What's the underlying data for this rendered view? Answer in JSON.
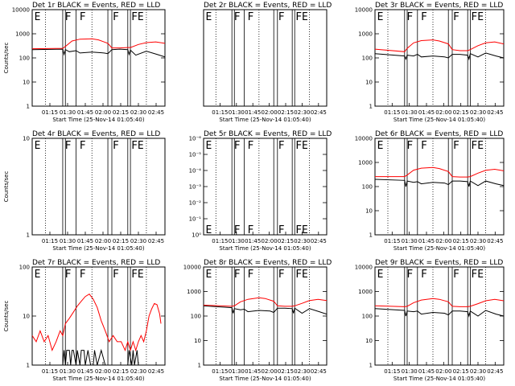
{
  "chart_data": [
    {
      "type": "line",
      "title": "Det 1r BLACK = Events, RED = LLD",
      "xlabel": "Start Time (25-Nov-14 01:05:40)",
      "ylabel": "Counts/sec",
      "xlim": [
        0,
        100
      ],
      "ylim": [
        1,
        10000
      ],
      "yscale": "log",
      "yticks": [
        1,
        10,
        100,
        1000,
        10000
      ],
      "yticklabels": [
        "1",
        "10",
        "100",
        "1000",
        "10000"
      ],
      "xticklabels": [
        "01:15",
        "01:30",
        "01:45",
        "02:00",
        "02:15",
        "02:30",
        "02:45"
      ],
      "dotted_lines": [
        10,
        45,
        86
      ],
      "solid_lines": [
        23,
        25,
        33,
        57,
        60,
        72,
        74
      ],
      "markers": [
        {
          "x": 1,
          "label": "E"
        },
        {
          "x": 24,
          "label": "F"
        },
        {
          "x": 35,
          "label": "F"
        },
        {
          "x": 60,
          "label": "F"
        },
        {
          "x": 74,
          "label": "FE"
        }
      ],
      "series": [
        {
          "name": "BLACK = Events",
          "color": "#000000",
          "x": [
            0,
            23,
            24,
            25,
            28,
            33,
            36,
            45,
            54,
            57,
            60,
            66,
            72,
            73,
            74,
            78,
            86,
            94,
            100
          ],
          "values": [
            220,
            230,
            140,
            220,
            180,
            200,
            160,
            175,
            160,
            150,
            220,
            230,
            220,
            140,
            210,
            130,
            190,
            140,
            110
          ]
        },
        {
          "name": "RED = LLD",
          "color": "#ff0000",
          "x": [
            0,
            23,
            25,
            30,
            36,
            45,
            50,
            57,
            60,
            66,
            72,
            74,
            80,
            86,
            93,
            100
          ],
          "values": [
            240,
            250,
            300,
            500,
            600,
            620,
            560,
            400,
            260,
            260,
            270,
            270,
            360,
            430,
            460,
            400
          ]
        }
      ]
    },
    {
      "type": "line",
      "title": "Det 2r BLACK = Events, RED = LLD",
      "xlabel": "Start Time (25-Nov-14 01:05:40)",
      "ylabel": "",
      "xlim": [
        0,
        100
      ],
      "ylim": [
        1,
        10000
      ],
      "yscale": "log",
      "yticks": [],
      "yticklabels": [],
      "xticklabels": [
        "01:15",
        "01:30",
        "01:45",
        "02:00",
        "02:15",
        "02:30",
        "02:45"
      ],
      "dotted_lines": [
        10,
        45,
        86
      ],
      "solid_lines": [
        23,
        25,
        33,
        57,
        60,
        72,
        74
      ],
      "markers": [
        {
          "x": 1,
          "label": "E"
        },
        {
          "x": 24,
          "label": "F"
        },
        {
          "x": 35,
          "label": "F"
        },
        {
          "x": 60,
          "label": "F"
        },
        {
          "x": 74,
          "label": "FE"
        }
      ],
      "series": []
    },
    {
      "type": "line",
      "title": "Det 3r BLACK = Events, RED = LLD",
      "xlabel": "Start Time (25-Nov-14 01:05:40)",
      "ylabel": "",
      "xlim": [
        0,
        100
      ],
      "ylim": [
        1,
        10000
      ],
      "yscale": "log",
      "yticks": [
        1,
        10,
        100,
        1000,
        10000
      ],
      "yticklabels": [
        "1",
        "10",
        "100",
        "1000",
        "10000"
      ],
      "xticklabels": [
        "01:15",
        "01:30",
        "01:45",
        "02:00",
        "02:15",
        "02:30",
        "02:45"
      ],
      "dotted_lines": [
        10,
        45,
        86
      ],
      "solid_lines": [
        23,
        25,
        33,
        57,
        60,
        72,
        74
      ],
      "markers": [
        {
          "x": 1,
          "label": "E"
        },
        {
          "x": 24,
          "label": "F"
        },
        {
          "x": 35,
          "label": "F"
        },
        {
          "x": 60,
          "label": "F"
        },
        {
          "x": 74,
          "label": "FE"
        }
      ],
      "series": [
        {
          "name": "BLACK = Events",
          "color": "#000000",
          "x": [
            0,
            23,
            24,
            25,
            30,
            33,
            36,
            45,
            54,
            57,
            60,
            66,
            72,
            73,
            74,
            80,
            86,
            94,
            100
          ],
          "values": [
            150,
            120,
            90,
            130,
            120,
            140,
            110,
            120,
            110,
            100,
            140,
            140,
            130,
            90,
            150,
            110,
            160,
            120,
            100
          ]
        },
        {
          "name": "RED = LLD",
          "color": "#ff0000",
          "x": [
            0,
            23,
            25,
            30,
            36,
            45,
            50,
            57,
            60,
            66,
            72,
            74,
            80,
            86,
            93,
            100
          ],
          "values": [
            230,
            180,
            250,
            420,
            520,
            560,
            500,
            380,
            220,
            200,
            200,
            220,
            320,
            420,
            460,
            380
          ]
        }
      ]
    },
    {
      "type": "line",
      "title": "Det 4r BLACK = Events, RED = LLD",
      "xlabel": "Start Time (25-Nov-14 01:05:40)",
      "ylabel": "Counts/sec",
      "xlim": [
        0,
        100
      ],
      "ylim": [
        1,
        10
      ],
      "yscale": "log",
      "yticks": [
        1,
        10
      ],
      "yticklabels": [
        "1",
        "10"
      ],
      "xticklabels": [
        "01:15",
        "01:30",
        "01:45",
        "02:00",
        "02:15",
        "02:30",
        "02:45"
      ],
      "dotted_lines": [
        10,
        45,
        86
      ],
      "solid_lines": [
        23,
        25,
        33,
        57,
        60,
        72,
        74
      ],
      "markers": [
        {
          "x": 1,
          "label": "E"
        },
        {
          "x": 24,
          "label": "F"
        },
        {
          "x": 35,
          "label": "F"
        },
        {
          "x": 60,
          "label": "F"
        },
        {
          "x": 74,
          "label": "FE"
        }
      ],
      "series": []
    },
    {
      "type": "line",
      "title": "Det 5r BLACK = Events, RED = LLD",
      "xlabel": "Start Time (25-Nov-14 01:05:40)",
      "ylabel": "",
      "xlim": [
        0,
        100
      ],
      "ylim": [
        1,
        1e-06
      ],
      "yscale": "log",
      "yticks": [
        1e-06,
        1e-05,
        0.0001,
        0.001,
        0.01,
        0.1,
        1
      ],
      "yticklabels": [
        "10⁻⁶",
        "10⁻⁵",
        "10⁻⁴",
        "10⁻³",
        "10⁻²",
        "10⁻¹",
        "10⁰"
      ],
      "xticklabels": [
        "01:15",
        "01:30",
        "01:45",
        "02:00",
        "02:15",
        "02:30",
        "02:45"
      ],
      "dotted_lines": [
        10,
        45,
        86
      ],
      "solid_lines": [
        23,
        25,
        33,
        57,
        60,
        72,
        74
      ],
      "markers": [
        {
          "x": 1,
          "label": "E"
        },
        {
          "x": 24,
          "label": "F"
        },
        {
          "x": 35,
          "label": "F"
        },
        {
          "x": 60,
          "label": "F"
        },
        {
          "x": 74,
          "label": "FE"
        }
      ],
      "series": []
    },
    {
      "type": "line",
      "title": "Det 6r BLACK = Events, RED = LLD",
      "xlabel": "Start Time (25-Nov-14 01:05:40)",
      "ylabel": "",
      "xlim": [
        0,
        100
      ],
      "ylim": [
        1,
        10000
      ],
      "yscale": "log",
      "yticks": [
        1,
        10,
        100,
        1000,
        10000
      ],
      "yticklabels": [
        "1",
        "10",
        "100",
        "1000",
        "10000"
      ],
      "xticklabels": [
        "01:15",
        "01:30",
        "01:45",
        "02:00",
        "02:15",
        "02:30",
        "02:45"
      ],
      "dotted_lines": [
        10,
        45,
        86
      ],
      "solid_lines": [
        23,
        25,
        33,
        57,
        60,
        72,
        74
      ],
      "markers": [
        {
          "x": 1,
          "label": "E"
        },
        {
          "x": 24,
          "label": "F"
        },
        {
          "x": 35,
          "label": "F"
        },
        {
          "x": 60,
          "label": "F"
        },
        {
          "x": 74,
          "label": "FE"
        }
      ],
      "series": [
        {
          "name": "BLACK = Events",
          "color": "#000000",
          "x": [
            0,
            23,
            24,
            25,
            30,
            33,
            36,
            45,
            54,
            57,
            60,
            66,
            72,
            73,
            74,
            80,
            86,
            94,
            100
          ],
          "values": [
            200,
            180,
            100,
            170,
            150,
            160,
            130,
            150,
            140,
            120,
            170,
            170,
            160,
            100,
            170,
            110,
            170,
            130,
            110
          ]
        },
        {
          "name": "RED = LLD",
          "color": "#ff0000",
          "x": [
            0,
            23,
            25,
            30,
            36,
            45,
            50,
            57,
            60,
            66,
            72,
            74,
            80,
            86,
            93,
            100
          ],
          "values": [
            260,
            260,
            300,
            480,
            580,
            620,
            560,
            420,
            260,
            250,
            250,
            260,
            360,
            470,
            520,
            450
          ]
        }
      ]
    },
    {
      "type": "line",
      "title": "Det 7r BLACK = Events, RED = LLD",
      "xlabel": "Start Time (25-Nov-14 01:05:40)",
      "ylabel": "Counts/sec",
      "xlim": [
        0,
        100
      ],
      "ylim": [
        1,
        100
      ],
      "yscale": "log",
      "yticks": [
        1,
        10,
        100
      ],
      "yticklabels": [
        "1",
        "10",
        "100"
      ],
      "xticklabels": [
        "01:15",
        "01:30",
        "01:45",
        "02:00",
        "02:15",
        "02:30",
        "02:45"
      ],
      "dotted_lines": [
        10,
        45,
        86
      ],
      "solid_lines": [
        23,
        25,
        33,
        57,
        60,
        72,
        74
      ],
      "markers": [
        {
          "x": 1,
          "label": "E"
        },
        {
          "x": 24,
          "label": "F"
        },
        {
          "x": 35,
          "label": "F"
        },
        {
          "x": 60,
          "label": "F"
        },
        {
          "x": 74,
          "label": "FE"
        }
      ],
      "series": [
        {
          "name": "BLACK = Events",
          "color": "#000000",
          "x": [
            23,
            24,
            25,
            26,
            28,
            29,
            30,
            31,
            33,
            34,
            36,
            37,
            39,
            40,
            42,
            44,
            46,
            47,
            49,
            52,
            55,
            72,
            73,
            75,
            76,
            77,
            79,
            80
          ],
          "values": [
            1,
            2,
            1,
            2,
            2,
            1,
            2,
            2,
            1,
            2,
            1,
            2,
            2,
            1,
            2,
            1,
            1,
            2,
            1,
            2,
            1,
            1,
            2,
            1,
            2,
            1,
            2,
            1
          ]
        },
        {
          "name": "RED = LLD",
          "color": "#ff0000",
          "x": [
            0,
            3,
            6,
            9,
            12,
            15,
            18,
            21,
            23,
            25,
            28,
            31,
            34,
            37,
            40,
            43,
            46,
            49,
            52,
            55,
            58,
            61,
            64,
            67,
            70,
            72,
            74,
            76,
            78,
            80,
            82,
            84,
            86,
            88,
            90,
            92,
            94,
            96,
            97
          ],
          "values": [
            4,
            3,
            5,
            3,
            4,
            2,
            3,
            5,
            4,
            7,
            9,
            12,
            16,
            20,
            25,
            28,
            22,
            15,
            8,
            5,
            3,
            4,
            3,
            3,
            2,
            3,
            2,
            3,
            2,
            3,
            4,
            3,
            5,
            10,
            14,
            18,
            17,
            11,
            7
          ]
        }
      ]
    },
    {
      "type": "line",
      "title": "Det 8r BLACK = Events, RED = LLD",
      "xlabel": "Start Time (25-Nov-14 01:05:40)",
      "ylabel": "",
      "xlim": [
        0,
        100
      ],
      "ylim": [
        1,
        10000
      ],
      "yscale": "log",
      "yticks": [
        1,
        10,
        100,
        1000,
        10000
      ],
      "yticklabels": [
        "1",
        "10",
        "100",
        "1000",
        "10000"
      ],
      "xticklabels": [
        "01:15",
        "01:30",
        "01:45",
        "02:00",
        "02:15",
        "02:30",
        "02:45"
      ],
      "dotted_lines": [
        10,
        45,
        86
      ],
      "solid_lines": [
        23,
        25,
        33,
        57,
        60,
        72,
        74
      ],
      "markers": [
        {
          "x": 1,
          "label": "E"
        },
        {
          "x": 24,
          "label": "F"
        },
        {
          "x": 35,
          "label": "F"
        },
        {
          "x": 60,
          "label": "F"
        },
        {
          "x": 74,
          "label": "FE"
        }
      ],
      "series": [
        {
          "name": "BLACK = Events",
          "color": "#000000",
          "x": [
            0,
            23,
            24,
            25,
            30,
            33,
            36,
            45,
            54,
            57,
            60,
            66,
            72,
            73,
            74,
            80,
            86,
            94,
            100
          ],
          "values": [
            260,
            220,
            130,
            200,
            180,
            190,
            150,
            170,
            160,
            140,
            210,
            210,
            200,
            130,
            210,
            130,
            200,
            150,
            120
          ]
        },
        {
          "name": "RED = LLD",
          "color": "#ff0000",
          "x": [
            0,
            23,
            25,
            30,
            36,
            45,
            50,
            57,
            60,
            66,
            72,
            74,
            80,
            86,
            93,
            100
          ],
          "values": [
            280,
            250,
            260,
            380,
            480,
            560,
            520,
            400,
            260,
            250,
            250,
            260,
            330,
            430,
            480,
            430
          ]
        }
      ]
    },
    {
      "type": "line",
      "title": "Det 9r BLACK = Events, RED = LLD",
      "xlabel": "Start Time (25-Nov-14 01:05:40)",
      "ylabel": "",
      "xlim": [
        0,
        100
      ],
      "ylim": [
        1,
        10000
      ],
      "yscale": "log",
      "yticks": [
        1,
        10,
        100,
        1000,
        10000
      ],
      "yticklabels": [
        "1",
        "10",
        "100",
        "1000",
        "10000"
      ],
      "xticklabels": [
        "01:15",
        "01:30",
        "01:45",
        "02:00",
        "02:15",
        "02:30",
        "02:45"
      ],
      "dotted_lines": [
        10,
        45,
        86
      ],
      "solid_lines": [
        23,
        25,
        33,
        57,
        60,
        72,
        74
      ],
      "markers": [
        {
          "x": 1,
          "label": "E"
        },
        {
          "x": 24,
          "label": "F"
        },
        {
          "x": 35,
          "label": "F"
        },
        {
          "x": 60,
          "label": "F"
        },
        {
          "x": 74,
          "label": "FE"
        }
      ],
      "series": [
        {
          "name": "BLACK = Events",
          "color": "#000000",
          "x": [
            0,
            23,
            24,
            25,
            30,
            33,
            36,
            45,
            54,
            57,
            60,
            66,
            72,
            73,
            74,
            80,
            86,
            94,
            100
          ],
          "values": [
            200,
            170,
            100,
            160,
            150,
            160,
            120,
            140,
            130,
            110,
            160,
            160,
            150,
            100,
            160,
            100,
            170,
            120,
            100
          ]
        },
        {
          "name": "RED = LLD",
          "color": "#ff0000",
          "x": [
            0,
            23,
            25,
            30,
            36,
            45,
            50,
            57,
            60,
            66,
            72,
            74,
            80,
            86,
            93,
            100
          ],
          "values": [
            260,
            240,
            250,
            350,
            450,
            520,
            480,
            380,
            250,
            240,
            240,
            250,
            320,
            420,
            480,
            420
          ]
        }
      ]
    }
  ]
}
